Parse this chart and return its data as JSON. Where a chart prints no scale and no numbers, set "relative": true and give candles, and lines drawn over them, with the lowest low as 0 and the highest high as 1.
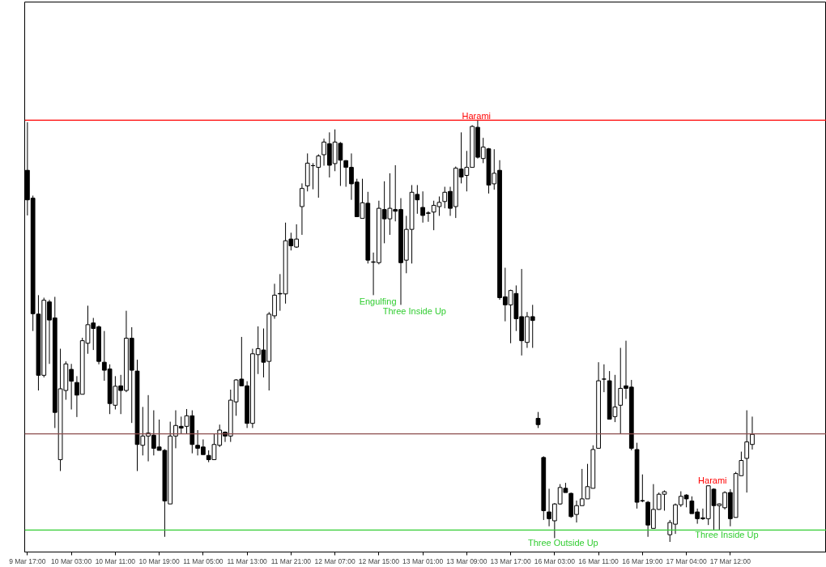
{
  "chart_data": {
    "type": "candlestick",
    "relative": true,
    "categories": [
      "9 Mar 17:00",
      null,
      null,
      null,
      null,
      null,
      null,
      null,
      "10 Mar 03:00",
      null,
      null,
      null,
      null,
      null,
      null,
      null,
      "10 Mar 11:00",
      null,
      null,
      null,
      null,
      null,
      null,
      null,
      "10 Mar 19:00",
      null,
      null,
      null,
      null,
      null,
      null,
      null,
      "11 Mar 05:00",
      null,
      null,
      null,
      null,
      null,
      null,
      null,
      "11 Mar 13:00",
      null,
      null,
      null,
      null,
      null,
      null,
      null,
      "11 Mar 21:00",
      null,
      null,
      null,
      null,
      null,
      null,
      null,
      "12 Mar 07:00",
      null,
      null,
      null,
      null,
      null,
      null,
      null,
      "12 Mar 15:00",
      null,
      null,
      null,
      null,
      null,
      null,
      null,
      "13 Mar 01:00",
      null,
      null,
      null,
      null,
      null,
      null,
      null,
      "13 Mar 09:00",
      null,
      null,
      null,
      null,
      null,
      null,
      null,
      "13 Mar 17:00",
      null,
      null,
      null,
      null,
      null,
      null,
      null,
      "16 Mar 03:00",
      null,
      null,
      null,
      null,
      null,
      null,
      null,
      "16 Mar 11:00",
      null,
      null,
      null,
      null,
      null,
      null,
      null,
      "16 Mar 19:00",
      null,
      null,
      null,
      null,
      null,
      null,
      null,
      "17 Mar 04:00",
      null,
      null,
      null,
      null,
      null,
      null,
      null,
      "17 Mar 12:00",
      null,
      null,
      null,
      null
    ],
    "ohlc": [
      [
        0.881,
        0.995,
        0.774,
        0.811
      ],
      [
        0.815,
        0.821,
        0.5,
        0.541
      ],
      [
        0.54,
        0.585,
        0.359,
        0.395
      ],
      [
        0.395,
        0.579,
        0.39,
        0.573
      ],
      [
        0.569,
        0.574,
        0.422,
        0.526
      ],
      [
        0.531,
        0.581,
        0.27,
        0.307
      ],
      [
        0.195,
        0.458,
        0.168,
        0.363
      ],
      [
        0.359,
        0.428,
        0.337,
        0.422
      ],
      [
        0.409,
        0.422,
        0.314,
        0.381
      ],
      [
        0.378,
        0.393,
        0.296,
        0.348
      ],
      [
        0.35,
        0.484,
        0.35,
        0.477
      ],
      [
        0.471,
        0.56,
        0.446,
        0.515
      ],
      [
        0.519,
        0.531,
        0.455,
        0.506
      ],
      [
        0.51,
        0.513,
        0.421,
        0.428
      ],
      [
        0.426,
        0.5,
        0.382,
        0.407
      ],
      [
        0.41,
        0.421,
        0.303,
        0.328
      ],
      [
        0.324,
        0.393,
        0.314,
        0.369
      ],
      [
        0.37,
        0.396,
        0.303,
        0.359
      ],
      [
        0.359,
        0.548,
        0.355,
        0.483
      ],
      [
        0.483,
        0.509,
        0.282,
        0.407
      ],
      [
        0.405,
        0.432,
        0.168,
        0.231
      ],
      [
        0.229,
        0.32,
        0.205,
        0.251
      ],
      [
        0.251,
        0.348,
        0.191,
        0.258
      ],
      [
        0.253,
        0.312,
        0.205,
        0.222
      ],
      [
        0.225,
        0.29,
        0.217,
        0.217
      ],
      [
        0.217,
        0.22,
        0.012,
        0.097
      ],
      [
        0.09,
        0.285,
        0.09,
        0.251
      ],
      [
        0.251,
        0.312,
        0.222,
        0.276
      ],
      [
        0.274,
        0.297,
        0.256,
        0.27
      ],
      [
        0.274,
        0.315,
        0.256,
        0.299
      ],
      [
        0.299,
        0.312,
        0.21,
        0.231
      ],
      [
        0.229,
        0.265,
        0.205,
        0.222
      ],
      [
        0.225,
        0.243,
        0.207,
        0.207
      ],
      [
        0.205,
        0.217,
        0.189,
        0.195
      ],
      [
        0.195,
        0.256,
        0.195,
        0.231
      ],
      [
        0.229,
        0.278,
        0.225,
        0.265
      ],
      [
        0.26,
        0.262,
        0.237,
        0.251
      ],
      [
        0.251,
        0.361,
        0.237,
        0.336
      ],
      [
        0.332,
        0.386,
        0.299,
        0.384
      ],
      [
        0.386,
        0.486,
        0.37,
        0.37
      ],
      [
        0.37,
        0.381,
        0.27,
        0.281
      ],
      [
        0.281,
        0.458,
        0.27,
        0.446
      ],
      [
        0.444,
        0.511,
        0.398,
        0.458
      ],
      [
        0.455,
        0.506,
        0.39,
        0.426
      ],
      [
        0.428,
        0.545,
        0.359,
        0.54
      ],
      [
        0.536,
        0.612,
        0.529,
        0.585
      ],
      [
        0.589,
        0.635,
        0.548,
        0.588
      ],
      [
        0.588,
        0.757,
        0.565,
        0.714
      ],
      [
        0.718,
        0.733,
        0.691,
        0.702
      ],
      [
        0.699,
        0.753,
        0.697,
        0.718
      ],
      [
        0.795,
        0.85,
        0.728,
        0.838
      ],
      [
        0.844,
        0.921,
        0.831,
        0.898
      ],
      [
        0.892,
        0.898,
        0.836,
        0.892
      ],
      [
        0.888,
        0.919,
        0.816,
        0.915
      ],
      [
        0.918,
        0.956,
        0.892,
        0.948
      ],
      [
        0.944,
        0.971,
        0.864,
        0.893
      ],
      [
        0.897,
        0.978,
        0.879,
        0.948
      ],
      [
        0.945,
        0.948,
        0.844,
        0.905
      ],
      [
        0.904,
        0.905,
        0.842,
        0.888
      ],
      [
        0.888,
        0.921,
        0.811,
        0.849
      ],
      [
        0.853,
        0.861,
        0.771,
        0.771
      ],
      [
        0.767,
        0.861,
        0.767,
        0.804
      ],
      [
        0.803,
        0.83,
        0.66,
        0.668
      ],
      [
        0.664,
        0.686,
        0.585,
        0.663
      ],
      [
        0.662,
        0.809,
        0.658,
        0.791
      ],
      [
        0.788,
        0.855,
        0.708,
        0.766
      ],
      [
        0.766,
        0.874,
        0.728,
        0.791
      ],
      [
        0.788,
        0.893,
        0.76,
        0.784
      ],
      [
        0.788,
        0.815,
        0.562,
        0.662
      ],
      [
        0.668,
        0.773,
        0.637,
        0.741
      ],
      [
        0.741,
        0.846,
        0.66,
        0.829
      ],
      [
        0.824,
        0.846,
        0.778,
        0.811
      ],
      [
        0.793,
        0.831,
        0.757,
        0.774
      ],
      [
        0.78,
        0.784,
        0.759,
        0.779
      ],
      [
        0.782,
        0.809,
        0.739,
        0.798
      ],
      [
        0.795,
        0.819,
        0.773,
        0.805
      ],
      [
        0.807,
        0.842,
        0.791,
        0.829
      ],
      [
        0.831,
        0.842,
        0.773,
        0.791
      ],
      [
        0.795,
        0.89,
        0.768,
        0.886
      ],
      [
        0.884,
        0.971,
        0.85,
        0.865
      ],
      [
        0.869,
        0.927,
        0.831,
        0.888
      ],
      [
        0.888,
        0.988,
        0.888,
        0.985
      ],
      [
        0.983,
        1.0,
        0.909,
        0.912
      ],
      [
        0.909,
        0.958,
        0.898,
        0.936
      ],
      [
        0.932,
        0.934,
        0.826,
        0.846
      ],
      [
        0.849,
        0.931,
        0.835,
        0.874
      ],
      [
        0.881,
        0.905,
        0.574,
        0.579
      ],
      [
        0.581,
        0.65,
        0.523,
        0.562
      ],
      [
        0.562,
        0.598,
        0.471,
        0.596
      ],
      [
        0.589,
        0.608,
        0.5,
        0.529
      ],
      [
        0.534,
        0.647,
        0.442,
        0.477
      ],
      [
        0.473,
        0.545,
        0.46,
        0.534
      ],
      [
        0.534,
        0.562,
        0.46,
        0.525
      ],
      [
        0.293,
        0.308,
        0.27,
        0.278
      ],
      [
        0.2,
        0.203,
        0.052,
        0.074
      ],
      [
        0.071,
        0.126,
        0.037,
        0.055
      ],
      [
        0.05,
        0.092,
        0.009,
        0.09
      ],
      [
        0.09,
        0.137,
        0.088,
        0.129
      ],
      [
        0.127,
        0.14,
        0.117,
        0.117
      ],
      [
        0.115,
        0.117,
        0.057,
        0.06
      ],
      [
        0.065,
        0.098,
        0.046,
        0.086
      ],
      [
        0.086,
        0.173,
        0.086,
        0.102
      ],
      [
        0.102,
        0.185,
        0.102,
        0.131
      ],
      [
        0.127,
        0.229,
        0.127,
        0.219
      ],
      [
        0.222,
        0.426,
        0.222,
        0.382
      ],
      [
        0.386,
        0.421,
        0.355,
        0.386
      ],
      [
        0.382,
        0.405,
        0.291,
        0.291
      ],
      [
        0.297,
        0.396,
        0.284,
        0.32
      ],
      [
        0.324,
        0.46,
        0.256,
        0.364
      ],
      [
        0.37,
        0.477,
        0.339,
        0.364
      ],
      [
        0.367,
        0.384,
        0.217,
        0.222
      ],
      [
        0.219,
        0.235,
        0.079,
        0.094
      ],
      [
        0.098,
        0.16,
        0.094,
        0.097
      ],
      [
        0.094,
        0.097,
        0.012,
        0.04
      ],
      [
        0.032,
        0.137,
        0.032,
        0.077
      ],
      [
        0.077,
        0.117,
        0.076,
        0.113
      ],
      [
        0.113,
        0.122,
        0.074,
        0.119
      ],
      [
        0.017,
        0.052,
        0.0,
        0.046
      ],
      [
        0.042,
        0.091,
        0.019,
        0.088
      ],
      [
        0.088,
        0.12,
        0.083,
        0.108
      ],
      [
        0.111,
        0.113,
        0.082,
        0.102
      ],
      [
        0.097,
        0.108,
        0.067,
        0.067
      ],
      [
        0.071,
        0.079,
        0.043,
        0.055
      ],
      [
        0.057,
        0.079,
        0.052,
        0.055
      ],
      [
        0.055,
        0.133,
        0.04,
        0.133
      ],
      [
        0.125,
        0.127,
        0.029,
        0.086
      ],
      [
        0.086,
        0.091,
        0.029,
        0.09
      ],
      [
        0.081,
        0.12,
        0.077,
        0.117
      ],
      [
        0.117,
        0.125,
        0.037,
        0.055
      ],
      [
        0.058,
        0.166,
        0.058,
        0.162
      ],
      [
        0.157,
        0.214,
        0.157,
        0.193
      ],
      [
        0.198,
        0.312,
        0.117,
        0.237
      ],
      [
        0.231,
        0.297,
        0.219,
        0.255
      ]
    ],
    "ref_lines": [
      {
        "axis": "y",
        "value": 1.0,
        "color": "#ff0000"
      },
      {
        "axis": "y",
        "value": 0.256,
        "color": "#8b4c4c"
      },
      {
        "axis": "y",
        "value": 0.028,
        "color": "#32cd32"
      }
    ],
    "annotations": [
      "Harami",
      "Engulfing",
      "Three Inside Up",
      "Three Outside Up",
      "Harami",
      "Three Inside Up"
    ]
  }
}
